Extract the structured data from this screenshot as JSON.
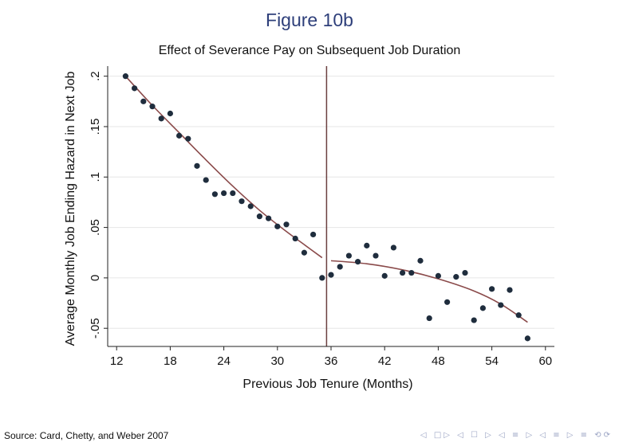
{
  "figure_title": "Figure 10b",
  "source": "Source:  Card, Chetty, and Weber 2007",
  "nav": {
    "frame_first": "◁",
    "frame_prev_next": "□▷",
    "frame_nav": "◁ ☐ ▷",
    "section_nav": "◁ ≡ ▷",
    "subsection_nav": "◁ ≡ ▷",
    "align": "≡",
    "search": "⟲⟳"
  },
  "colors": {
    "title": "#2e3f7a",
    "point": "#1f2d3d",
    "fit_line": "#8a4a4a",
    "cutoff_line": "#6b4040",
    "grid": "#e6e6e6"
  },
  "chart_data": {
    "type": "scatter",
    "title": "Effect of Severance Pay on Subsequent Job Duration",
    "xlabel": "Previous Job Tenure (Months)",
    "ylabel": "Average Monthly Job Ending Hazard in Next Job",
    "xlim": [
      11,
      61
    ],
    "ylim": [
      -0.068,
      0.21
    ],
    "xticks": [
      12,
      18,
      24,
      30,
      36,
      42,
      48,
      54,
      60
    ],
    "xtick_labels": [
      "12",
      "18",
      "24",
      "30",
      "36",
      "42",
      "48",
      "54",
      "60"
    ],
    "yticks": [
      -0.05,
      0,
      0.05,
      0.1,
      0.15,
      0.2
    ],
    "ytick_labels": [
      "-.05",
      "0",
      ".05",
      ".1",
      ".15",
      ".2"
    ],
    "grid": true,
    "cutoff_x": 35.5,
    "points": [
      {
        "x": 13,
        "y": 0.2
      },
      {
        "x": 14,
        "y": 0.188
      },
      {
        "x": 15,
        "y": 0.175
      },
      {
        "x": 16,
        "y": 0.17
      },
      {
        "x": 17,
        "y": 0.158
      },
      {
        "x": 18,
        "y": 0.163
      },
      {
        "x": 19,
        "y": 0.141
      },
      {
        "x": 20,
        "y": 0.138
      },
      {
        "x": 21,
        "y": 0.111
      },
      {
        "x": 22,
        "y": 0.097
      },
      {
        "x": 23,
        "y": 0.083
      },
      {
        "x": 24,
        "y": 0.084
      },
      {
        "x": 25,
        "y": 0.084
      },
      {
        "x": 26,
        "y": 0.076
      },
      {
        "x": 27,
        "y": 0.071
      },
      {
        "x": 28,
        "y": 0.061
      },
      {
        "x": 29,
        "y": 0.059
      },
      {
        "x": 30,
        "y": 0.051
      },
      {
        "x": 31,
        "y": 0.053
      },
      {
        "x": 32,
        "y": 0.039
      },
      {
        "x": 33,
        "y": 0.025
      },
      {
        "x": 34,
        "y": 0.043
      },
      {
        "x": 35,
        "y": 0.0
      },
      {
        "x": 36,
        "y": 0.003
      },
      {
        "x": 37,
        "y": 0.011
      },
      {
        "x": 38,
        "y": 0.022
      },
      {
        "x": 39,
        "y": 0.016
      },
      {
        "x": 40,
        "y": 0.032
      },
      {
        "x": 41,
        "y": 0.022
      },
      {
        "x": 42,
        "y": 0.002
      },
      {
        "x": 43,
        "y": 0.03
      },
      {
        "x": 44,
        "y": 0.005
      },
      {
        "x": 45,
        "y": 0.005
      },
      {
        "x": 46,
        "y": 0.017
      },
      {
        "x": 47,
        "y": -0.04
      },
      {
        "x": 48,
        "y": 0.002
      },
      {
        "x": 49,
        "y": -0.024
      },
      {
        "x": 50,
        "y": 0.001
      },
      {
        "x": 51,
        "y": 0.005
      },
      {
        "x": 52,
        "y": -0.042
      },
      {
        "x": 53,
        "y": -0.03
      },
      {
        "x": 54,
        "y": -0.011
      },
      {
        "x": 55,
        "y": -0.027
      },
      {
        "x": 56,
        "y": -0.012
      },
      {
        "x": 57,
        "y": -0.037
      },
      {
        "x": 58,
        "y": -0.06
      }
    ],
    "fit_left": [
      {
        "x": 13,
        "y": 0.2
      },
      {
        "x": 16,
        "y": 0.171
      },
      {
        "x": 19,
        "y": 0.144
      },
      {
        "x": 22,
        "y": 0.117
      },
      {
        "x": 25,
        "y": 0.091
      },
      {
        "x": 28,
        "y": 0.067
      },
      {
        "x": 31,
        "y": 0.046
      },
      {
        "x": 33,
        "y": 0.033
      },
      {
        "x": 35,
        "y": 0.02
      }
    ],
    "fit_right": [
      {
        "x": 36,
        "y": 0.017
      },
      {
        "x": 40,
        "y": 0.014
      },
      {
        "x": 44,
        "y": 0.008
      },
      {
        "x": 48,
        "y": -0.001
      },
      {
        "x": 52,
        "y": -0.013
      },
      {
        "x": 55,
        "y": -0.026
      },
      {
        "x": 58,
        "y": -0.044
      }
    ]
  }
}
